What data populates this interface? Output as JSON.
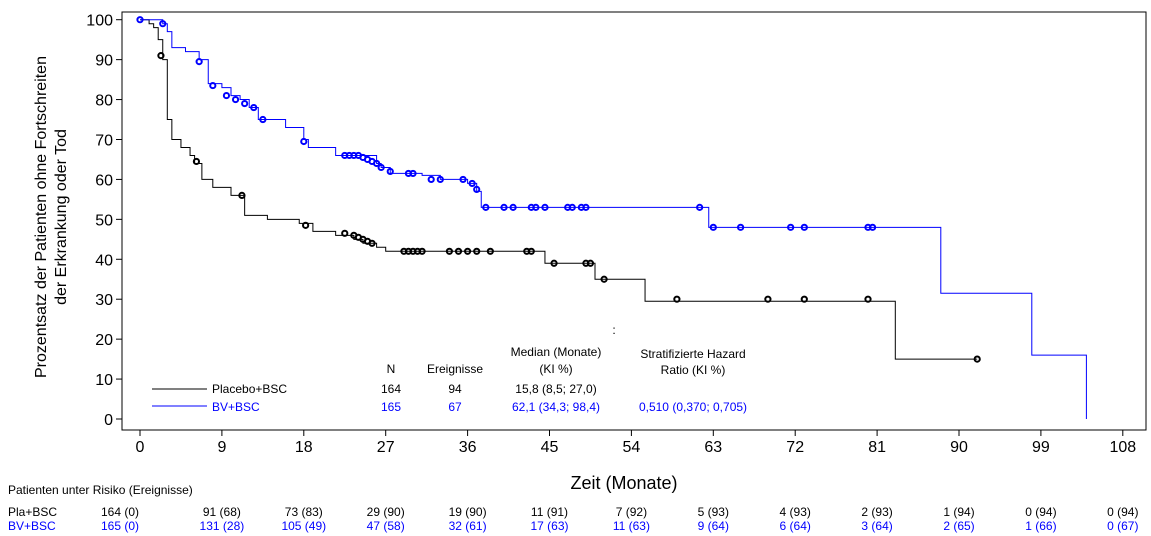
{
  "chart_data": {
    "type": "line",
    "subtype": "kaplan-meier",
    "ylabel_line1": "Prozentsatz der Patienten ohne Fortschreiten",
    "ylabel_line2": "der Erkrankung oder Tod",
    "xlabel": "Zeit (Monate)",
    "xlim": [
      0,
      110
    ],
    "ylim": [
      0,
      100
    ],
    "xticks": [
      0,
      9,
      18,
      27,
      36,
      45,
      54,
      63,
      72,
      81,
      90,
      99,
      108
    ],
    "yticks": [
      0,
      10,
      20,
      30,
      40,
      50,
      60,
      70,
      80,
      90,
      100
    ],
    "grid": false,
    "series": [
      {
        "name": "Placebo+BSC",
        "color": "#000000",
        "steps": [
          [
            0,
            100
          ],
          [
            1,
            99
          ],
          [
            1.5,
            98
          ],
          [
            2,
            95
          ],
          [
            2.5,
            90
          ],
          [
            3,
            75
          ],
          [
            3.5,
            70
          ],
          [
            4.5,
            68
          ],
          [
            5.5,
            66
          ],
          [
            6,
            64
          ],
          [
            6.8,
            60
          ],
          [
            8,
            58
          ],
          [
            10,
            56
          ],
          [
            11.5,
            51
          ],
          [
            14,
            50
          ],
          [
            17.5,
            49
          ],
          [
            19,
            47
          ],
          [
            21.5,
            46
          ],
          [
            23.5,
            45
          ],
          [
            24.5,
            44
          ],
          [
            26,
            43
          ],
          [
            27,
            42
          ],
          [
            29,
            42
          ],
          [
            35,
            42
          ],
          [
            38.5,
            42
          ],
          [
            44,
            42
          ],
          [
            44.5,
            39
          ],
          [
            48,
            39
          ],
          [
            50,
            35
          ],
          [
            55.5,
            29.5
          ],
          [
            83,
            29.5
          ],
          [
            83,
            15
          ],
          [
            92,
            15
          ]
        ],
        "censors": [
          [
            2.3,
            91
          ],
          [
            6.2,
            64.5
          ],
          [
            11.2,
            56
          ],
          [
            18.2,
            48.5
          ],
          [
            22.5,
            46.5
          ],
          [
            23.5,
            46
          ],
          [
            24,
            45.5
          ],
          [
            24.5,
            45
          ],
          [
            25,
            44.5
          ],
          [
            25.5,
            44
          ],
          [
            29,
            42
          ],
          [
            29.5,
            42
          ],
          [
            30,
            42
          ],
          [
            30.5,
            42
          ],
          [
            31,
            42
          ],
          [
            34,
            42
          ],
          [
            35,
            42
          ],
          [
            36,
            42
          ],
          [
            37,
            42
          ],
          [
            38.5,
            42
          ],
          [
            42.5,
            42
          ],
          [
            43,
            42
          ],
          [
            45.5,
            39
          ],
          [
            49,
            39
          ],
          [
            49.5,
            39
          ],
          [
            51,
            35
          ],
          [
            59,
            30
          ],
          [
            69,
            30
          ],
          [
            73,
            30
          ],
          [
            80,
            30
          ],
          [
            92,
            15
          ]
        ]
      },
      {
        "name": "BV+BSC",
        "color": "#0000ff",
        "steps": [
          [
            0,
            100
          ],
          [
            2.5,
            99
          ],
          [
            3,
            97
          ],
          [
            3.5,
            93
          ],
          [
            5,
            92
          ],
          [
            6.5,
            90
          ],
          [
            7.5,
            84
          ],
          [
            9,
            83
          ],
          [
            10,
            81
          ],
          [
            11,
            80
          ],
          [
            12,
            78
          ],
          [
            13,
            75
          ],
          [
            16,
            73
          ],
          [
            18,
            70
          ],
          [
            18.5,
            68
          ],
          [
            21.5,
            66
          ],
          [
            26,
            64
          ],
          [
            26.5,
            63
          ],
          [
            27.5,
            61.5
          ],
          [
            31,
            61
          ],
          [
            33,
            60
          ],
          [
            36,
            59
          ],
          [
            37,
            57
          ],
          [
            37.5,
            53
          ],
          [
            62,
            53
          ],
          [
            62.5,
            48
          ],
          [
            88,
            48
          ],
          [
            88,
            31.5
          ],
          [
            98,
            31.5
          ],
          [
            98,
            16
          ],
          [
            104,
            16
          ],
          [
            104,
            0
          ]
        ],
        "censors": [
          [
            0,
            100
          ],
          [
            2.5,
            99
          ],
          [
            6.5,
            89.5
          ],
          [
            8,
            83.5
          ],
          [
            9.5,
            81
          ],
          [
            10.5,
            80
          ],
          [
            11.5,
            79
          ],
          [
            12.5,
            78
          ],
          [
            13.5,
            75
          ],
          [
            18,
            69.5
          ],
          [
            22.5,
            66
          ],
          [
            23,
            66
          ],
          [
            23.5,
            66
          ],
          [
            24,
            66
          ],
          [
            24.5,
            65.5
          ],
          [
            25,
            65
          ],
          [
            25.5,
            64.5
          ],
          [
            26,
            64
          ],
          [
            26.5,
            63
          ],
          [
            27.5,
            62
          ],
          [
            29.5,
            61.5
          ],
          [
            30,
            61.5
          ],
          [
            32,
            60
          ],
          [
            33,
            60
          ],
          [
            35.5,
            60
          ],
          [
            36.5,
            59
          ],
          [
            37,
            57.5
          ],
          [
            38,
            53
          ],
          [
            40,
            53
          ],
          [
            41,
            53
          ],
          [
            43,
            53
          ],
          [
            43.5,
            53
          ],
          [
            44.5,
            53
          ],
          [
            47,
            53
          ],
          [
            47.5,
            53
          ],
          [
            48.5,
            53
          ],
          [
            49,
            53
          ],
          [
            61.5,
            53
          ],
          [
            63,
            48
          ],
          [
            66,
            48
          ],
          [
            71.5,
            48
          ],
          [
            73,
            48
          ],
          [
            80,
            48
          ],
          [
            80.5,
            48
          ]
        ]
      }
    ],
    "table": {
      "headers": {
        "n": "N",
        "events": "Ereignisse",
        "median_1": "Median (Monate)",
        "median_2": "(KI %)",
        "hr_1": "Stratifizierte Hazard",
        "hr_2": "Ratio (KI %)",
        "colon": ":"
      },
      "rows": [
        {
          "label": "Placebo+BSC",
          "n": "164",
          "events": "94",
          "median": "15,8 (8,5; 27,0)",
          "hr": ""
        },
        {
          "label": "BV+BSC",
          "n": "165",
          "events": "67",
          "median": "62,1 (34,3; 98,4)",
          "hr": "0,510 (0,370; 0,705)"
        }
      ]
    },
    "risk_table": {
      "title": "Patienten unter Risiko (Ereignisse)",
      "rows": [
        {
          "label": "Pla+BSC",
          "color": "#000000",
          "values": [
            "164 (0)",
            "91 (68)",
            "73 (83)",
            "29 (90)",
            "19 (90)",
            "11 (91)",
            "7 (92)",
            "5 (93)",
            "4 (93)",
            "2 (93)",
            "1 (94)",
            "0 (94)",
            "0 (94)"
          ]
        },
        {
          "label": "BV+BSC",
          "color": "#0000ff",
          "values": [
            "165 (0)",
            "131 (28)",
            "105 (49)",
            "47 (58)",
            "32 (61)",
            "17 (63)",
            "11 (63)",
            "9 (64)",
            "6 (64)",
            "3 (64)",
            "2 (65)",
            "1 (66)",
            "0 (67)"
          ]
        }
      ]
    }
  }
}
